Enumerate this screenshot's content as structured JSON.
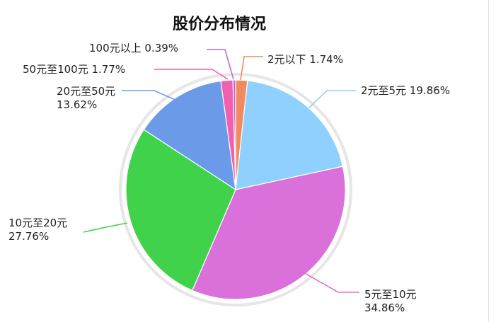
{
  "chart_data": {
    "type": "pie",
    "title": "股价分布情况",
    "slices": [
      {
        "label": "2元以下",
        "value": 1.74,
        "pct_text": "1.74%",
        "color": "#f28a5f"
      },
      {
        "label": "2元至5元",
        "value": 19.86,
        "pct_text": "19.86%",
        "color": "#8fd0ff"
      },
      {
        "label": "5元至10元",
        "value": 34.86,
        "pct_text": "34.86%",
        "color": "#da70da"
      },
      {
        "label": "10元至20元",
        "value": 27.76,
        "pct_text": "27.76%",
        "color": "#3fd24a"
      },
      {
        "label": "20元至50元",
        "value": 13.62,
        "pct_text": "13.62%",
        "color": "#6b9be8"
      },
      {
        "label": "50元至100元",
        "value": 1.77,
        "pct_text": "1.77%",
        "color": "#f25fae"
      },
      {
        "label": "100元以上",
        "value": 0.39,
        "pct_text": "0.39%",
        "color": "#c06ad0"
      }
    ]
  }
}
